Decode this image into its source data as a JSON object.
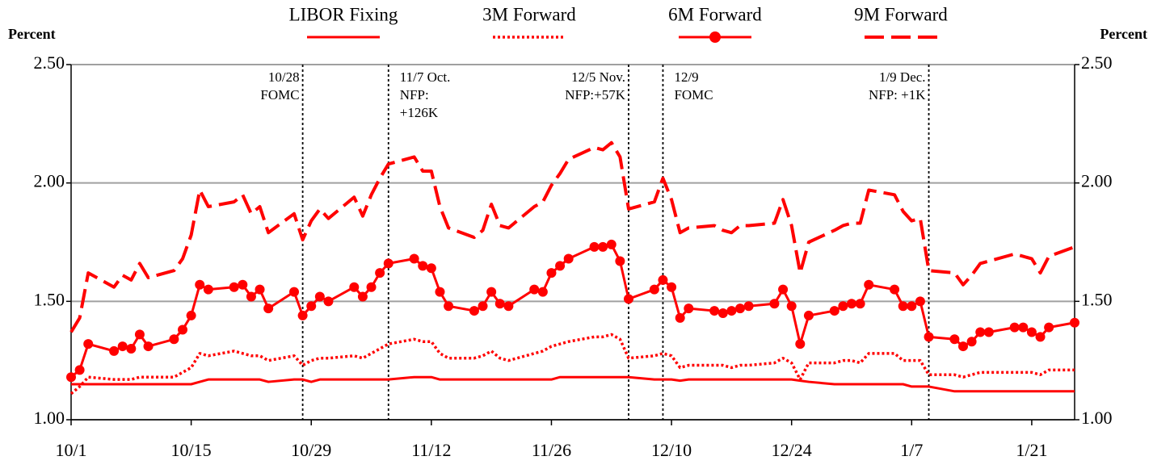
{
  "chart_data": {
    "type": "line",
    "y_label": "Percent",
    "y2_label": "Percent",
    "legend_position": "top",
    "grid": true,
    "x": [
      0,
      1,
      2,
      5,
      6,
      7,
      8,
      9,
      12,
      13,
      14,
      15,
      16,
      19,
      20,
      21,
      22,
      23,
      26,
      27,
      28,
      29,
      30,
      33,
      34,
      35,
      36,
      37,
      40,
      41,
      42,
      43,
      44,
      47,
      48,
      49,
      50,
      51,
      54,
      55,
      56,
      57,
      58,
      61,
      62,
      63,
      64,
      65,
      68,
      69,
      70,
      71,
      72,
      75,
      76,
      77,
      78,
      79,
      82,
      83,
      84,
      85,
      86,
      89,
      90,
      91,
      92,
      93,
      96,
      97,
      98,
      99,
      100,
      103,
      104,
      105,
      106,
      107,
      110,
      111,
      112,
      113,
      114,
      117
    ],
    "xlim": [
      0,
      117
    ],
    "xticks": [
      {
        "value": 0,
        "label": "10/1"
      },
      {
        "value": 14,
        "label": "10/15"
      },
      {
        "value": 28,
        "label": "10/29"
      },
      {
        "value": 42,
        "label": "11/12"
      },
      {
        "value": 56,
        "label": "11/26"
      },
      {
        "value": 70,
        "label": "12/10"
      },
      {
        "value": 84,
        "label": "12/24"
      },
      {
        "value": 98,
        "label": "1/7"
      },
      {
        "value": 112,
        "label": "1/21"
      }
    ],
    "ylim": [
      1,
      2.5
    ],
    "yticks": [
      {
        "value": 1,
        "label": "1.00"
      },
      {
        "value": 1.5,
        "label": "1.50"
      },
      {
        "value": 2,
        "label": "2.00"
      },
      {
        "value": 2.5,
        "label": "2.50"
      }
    ],
    "y2lim": [
      1,
      2.5
    ],
    "y2ticks": [
      {
        "value": 1,
        "label": "1.00"
      },
      {
        "value": 1.5,
        "label": "1.50"
      },
      {
        "value": 2,
        "label": "2.00"
      },
      {
        "value": 2.5,
        "label": "2.50"
      }
    ],
    "series": [
      {
        "name": "LIBOR Fixing",
        "color": "#ff0000",
        "dash": "solid",
        "values": [
          1.15,
          1.15,
          1.15,
          1.15,
          1.15,
          1.15,
          1.15,
          1.15,
          1.15,
          1.15,
          1.15,
          1.16,
          1.17,
          1.17,
          1.17,
          1.17,
          1.17,
          1.16,
          1.17,
          1.17,
          1.16,
          1.17,
          1.17,
          1.17,
          1.17,
          1.17,
          1.17,
          1.17,
          1.18,
          1.18,
          1.18,
          1.17,
          1.17,
          1.17,
          1.17,
          1.17,
          1.17,
          1.17,
          1.17,
          1.17,
          1.17,
          1.18,
          1.18,
          1.18,
          1.18,
          1.18,
          1.18,
          1.18,
          1.17,
          1.17,
          1.17,
          1.165,
          1.17,
          1.17,
          1.17,
          1.17,
          1.17,
          1.17,
          1.17,
          1.17,
          1.17,
          1.165,
          1.16,
          1.15,
          1.15,
          1.15,
          1.15,
          1.15,
          1.15,
          1.15,
          1.14,
          1.14,
          1.14,
          1.12,
          1.12,
          1.12,
          1.12,
          1.12,
          1.12,
          1.12,
          1.12,
          1.12,
          1.12,
          1.12
        ]
      },
      {
        "name": "3M Forward",
        "color": "#ff0000",
        "dash": "dotted",
        "values": [
          1.11,
          1.14,
          1.18,
          1.17,
          1.17,
          1.17,
          1.18,
          1.18,
          1.18,
          1.2,
          1.22,
          1.28,
          1.27,
          1.29,
          1.28,
          1.27,
          1.27,
          1.25,
          1.27,
          1.23,
          1.25,
          1.26,
          1.26,
          1.27,
          1.26,
          1.28,
          1.3,
          1.32,
          1.34,
          1.33,
          1.33,
          1.28,
          1.26,
          1.26,
          1.27,
          1.29,
          1.26,
          1.25,
          1.28,
          1.29,
          1.31,
          1.32,
          1.33,
          1.35,
          1.35,
          1.36,
          1.34,
          1.26,
          1.27,
          1.28,
          1.27,
          1.22,
          1.23,
          1.23,
          1.23,
          1.22,
          1.23,
          1.23,
          1.24,
          1.26,
          1.24,
          1.17,
          1.24,
          1.24,
          1.25,
          1.25,
          1.24,
          1.28,
          1.28,
          1.25,
          1.25,
          1.25,
          1.19,
          1.19,
          1.18,
          1.19,
          1.2,
          1.2,
          1.2,
          1.2,
          1.2,
          1.19,
          1.21,
          1.21
        ]
      },
      {
        "name": "6M Forward",
        "color": "#ff0000",
        "dash": "solid",
        "marker": "circle",
        "values": [
          1.18,
          1.21,
          1.32,
          1.29,
          1.31,
          1.3,
          1.36,
          1.31,
          1.34,
          1.38,
          1.44,
          1.57,
          1.55,
          1.56,
          1.57,
          1.52,
          1.55,
          1.47,
          1.54,
          1.44,
          1.48,
          1.52,
          1.5,
          1.56,
          1.52,
          1.56,
          1.62,
          1.66,
          1.68,
          1.65,
          1.64,
          1.54,
          1.48,
          1.46,
          1.48,
          1.54,
          1.49,
          1.48,
          1.55,
          1.54,
          1.62,
          1.65,
          1.68,
          1.73,
          1.73,
          1.74,
          1.67,
          1.51,
          1.55,
          1.59,
          1.56,
          1.43,
          1.47,
          1.46,
          1.45,
          1.46,
          1.47,
          1.48,
          1.49,
          1.55,
          1.48,
          1.32,
          1.44,
          1.46,
          1.48,
          1.49,
          1.49,
          1.57,
          1.55,
          1.48,
          1.48,
          1.5,
          1.35,
          1.34,
          1.31,
          1.33,
          1.37,
          1.37,
          1.39,
          1.39,
          1.37,
          1.35,
          1.39,
          1.41
        ]
      },
      {
        "name": "9M Forward",
        "color": "#ff0000",
        "dash": "dashed",
        "values": [
          1.37,
          1.43,
          1.62,
          1.56,
          1.61,
          1.59,
          1.66,
          1.6,
          1.63,
          1.68,
          1.78,
          1.97,
          1.9,
          1.92,
          1.95,
          1.87,
          1.9,
          1.79,
          1.87,
          1.76,
          1.84,
          1.89,
          1.85,
          1.94,
          1.86,
          1.95,
          2.02,
          2.08,
          2.11,
          2.05,
          2.05,
          1.9,
          1.81,
          1.77,
          1.8,
          1.91,
          1.82,
          1.81,
          1.9,
          1.92,
          1.99,
          2.04,
          2.1,
          2.15,
          2.14,
          2.17,
          2.11,
          1.89,
          1.92,
          2.02,
          1.93,
          1.79,
          1.81,
          1.82,
          1.8,
          1.79,
          1.82,
          1.82,
          1.83,
          1.93,
          1.82,
          1.62,
          1.75,
          1.8,
          1.82,
          1.83,
          1.83,
          1.97,
          1.95,
          1.88,
          1.84,
          1.85,
          1.63,
          1.62,
          1.57,
          1.61,
          1.66,
          1.67,
          1.7,
          1.69,
          1.68,
          1.62,
          1.69,
          1.73
        ]
      }
    ],
    "annotations": [
      {
        "x": 27,
        "anchor": "end",
        "text": [
          "10/28",
          "FOMC"
        ]
      },
      {
        "x": 37,
        "anchor": "start",
        "text": [
          "11/7 Oct.",
          "NFP:",
          "+126K"
        ]
      },
      {
        "x": 65,
        "anchor": "end",
        "text": [
          "12/5 Nov.",
          "NFP:+57K"
        ]
      },
      {
        "x": 69,
        "anchor": "start",
        "text": [
          "12/9",
          "FOMC"
        ]
      },
      {
        "x": 100,
        "anchor": "end",
        "text": [
          "1/9 Dec.",
          "NFP: +1K"
        ]
      }
    ]
  }
}
